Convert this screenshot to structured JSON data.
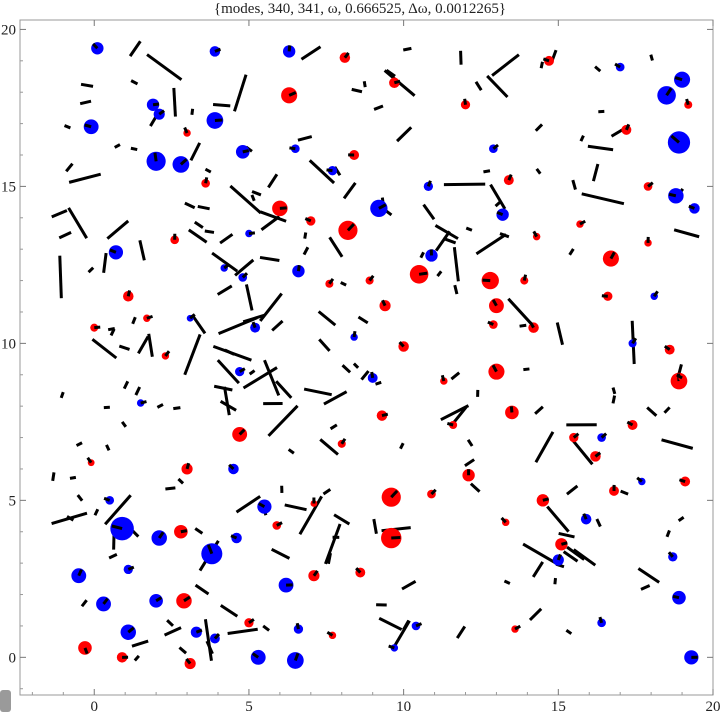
{
  "chart_data": {
    "type": "scatter",
    "title": "{modes, 340, 341, ω, 0.666525, Δω, 0.0012265}",
    "xlim": [
      -2.4,
      20
    ],
    "ylim": [
      -1.2,
      20.3
    ],
    "xticks": [
      0,
      5,
      10,
      15,
      20
    ],
    "yticks": [
      0,
      5,
      10,
      15,
      20
    ],
    "grid": false,
    "legend": "none",
    "colors": {
      "positive": "#ff0000",
      "negative": "#0000ff",
      "segment": "#000000",
      "frame": "#999999"
    },
    "circles": [
      {
        "x": 0.9,
        "y": 4.1,
        "r": 0.38,
        "sign": "negative"
      },
      {
        "x": 3.8,
        "y": 3.3,
        "r": 0.34,
        "sign": "negative"
      },
      {
        "x": 18.9,
        "y": 16.4,
        "r": 0.36,
        "sign": "negative"
      },
      {
        "x": 2.0,
        "y": 15.8,
        "r": 0.31,
        "sign": "negative"
      },
      {
        "x": 9.6,
        "y": 5.1,
        "r": 0.31,
        "sign": "positive"
      },
      {
        "x": 9.6,
        "y": 3.8,
        "r": 0.33,
        "sign": "positive"
      },
      {
        "x": 8.2,
        "y": 13.6,
        "r": 0.31,
        "sign": "positive"
      },
      {
        "x": 13.0,
        "y": 9.1,
        "r": 0.26,
        "sign": "positive"
      },
      {
        "x": 12.8,
        "y": 12.0,
        "r": 0.28,
        "sign": "positive"
      },
      {
        "x": 10.5,
        "y": 12.2,
        "r": 0.3,
        "sign": "positive"
      },
      {
        "x": 18.5,
        "y": 17.9,
        "r": 0.3,
        "sign": "negative"
      },
      {
        "x": 2.8,
        "y": 15.7,
        "r": 0.27,
        "sign": "negative"
      },
      {
        "x": 3.9,
        "y": 17.1,
        "r": 0.27,
        "sign": "negative"
      },
      {
        "x": 9.2,
        "y": 14.3,
        "r": 0.28,
        "sign": "negative"
      },
      {
        "x": 6.3,
        "y": 17.9,
        "r": 0.26,
        "sign": "positive"
      },
      {
        "x": 6.0,
        "y": 14.3,
        "r": 0.25,
        "sign": "positive"
      },
      {
        "x": 18.8,
        "y": 14.7,
        "r": 0.25,
        "sign": "negative"
      },
      {
        "x": 19.0,
        "y": 18.4,
        "r": 0.26,
        "sign": "negative"
      },
      {
        "x": 13.0,
        "y": 11.2,
        "r": 0.24,
        "sign": "positive"
      },
      {
        "x": 16.7,
        "y": 12.7,
        "r": 0.26,
        "sign": "positive"
      },
      {
        "x": 18.9,
        "y": 8.8,
        "r": 0.27,
        "sign": "positive"
      },
      {
        "x": 12.1,
        "y": 5.8,
        "r": 0.2,
        "sign": "positive"
      },
      {
        "x": -0.5,
        "y": 2.6,
        "r": 0.24,
        "sign": "negative"
      },
      {
        "x": -0.3,
        "y": 0.3,
        "r": 0.22,
        "sign": "positive"
      },
      {
        "x": 1.1,
        "y": 0.8,
        "r": 0.25,
        "sign": "negative"
      },
      {
        "x": 6.5,
        "y": -0.1,
        "r": 0.27,
        "sign": "negative"
      },
      {
        "x": 5.3,
        "y": 0.0,
        "r": 0.24,
        "sign": "negative"
      },
      {
        "x": 2.9,
        "y": 1.8,
        "r": 0.25,
        "sign": "positive"
      },
      {
        "x": 2.0,
        "y": 1.8,
        "r": 0.22,
        "sign": "negative"
      },
      {
        "x": 2.1,
        "y": 3.8,
        "r": 0.25,
        "sign": "negative"
      },
      {
        "x": 2.8,
        "y": 4.0,
        "r": 0.22,
        "sign": "positive"
      },
      {
        "x": 4.7,
        "y": 7.1,
        "r": 0.24,
        "sign": "positive"
      },
      {
        "x": 5.5,
        "y": 4.8,
        "r": 0.23,
        "sign": "negative"
      },
      {
        "x": 6.2,
        "y": 2.3,
        "r": 0.24,
        "sign": "negative"
      },
      {
        "x": 0.3,
        "y": 1.7,
        "r": 0.24,
        "sign": "negative"
      },
      {
        "x": 19.3,
        "y": 0.0,
        "r": 0.23,
        "sign": "negative"
      },
      {
        "x": 18.9,
        "y": 1.9,
        "r": 0.22,
        "sign": "negative"
      },
      {
        "x": 13.5,
        "y": 7.8,
        "r": 0.22,
        "sign": "positive"
      },
      {
        "x": 14.5,
        "y": 5.0,
        "r": 0.2,
        "sign": "positive"
      },
      {
        "x": 15.1,
        "y": 3.6,
        "r": 0.2,
        "sign": "positive"
      },
      {
        "x": 1.9,
        "y": 17.6,
        "r": 0.2,
        "sign": "negative"
      },
      {
        "x": -0.1,
        "y": 16.9,
        "r": 0.24,
        "sign": "negative"
      },
      {
        "x": 0.7,
        "y": 12.9,
        "r": 0.23,
        "sign": "negative"
      },
      {
        "x": 4.8,
        "y": 16.1,
        "r": 0.22,
        "sign": "negative"
      },
      {
        "x": 6.6,
        "y": 12.3,
        "r": 0.2,
        "sign": "negative"
      },
      {
        "x": 10.9,
        "y": 12.8,
        "r": 0.2,
        "sign": "negative"
      },
      {
        "x": 13.2,
        "y": 14.1,
        "r": 0.2,
        "sign": "negative"
      },
      {
        "x": 15.0,
        "y": 3.1,
        "r": 0.18,
        "sign": "negative"
      },
      {
        "x": 15.9,
        "y": 4.4,
        "r": 0.17,
        "sign": "negative"
      },
      {
        "x": 14.2,
        "y": 10.5,
        "r": 0.17,
        "sign": "positive"
      },
      {
        "x": 15.5,
        "y": 7.0,
        "r": 0.15,
        "sign": "positive"
      },
      {
        "x": 17.2,
        "y": 16.8,
        "r": 0.16,
        "sign": "positive"
      },
      {
        "x": 16.8,
        "y": 5.3,
        "r": 0.16,
        "sign": "positive"
      },
      {
        "x": 19.1,
        "y": 5.6,
        "r": 0.16,
        "sign": "positive"
      },
      {
        "x": 9.3,
        "y": 7.7,
        "r": 0.17,
        "sign": "positive"
      },
      {
        "x": 7.1,
        "y": 2.6,
        "r": 0.18,
        "sign": "positive"
      },
      {
        "x": 3.0,
        "y": 6.0,
        "r": 0.18,
        "sign": "positive"
      },
      {
        "x": 1.1,
        "y": 11.5,
        "r": 0.17,
        "sign": "positive"
      },
      {
        "x": 9.4,
        "y": 11.2,
        "r": 0.18,
        "sign": "positive"
      },
      {
        "x": 10.0,
        "y": 9.9,
        "r": 0.17,
        "sign": "positive"
      },
      {
        "x": 5.9,
        "y": 4.2,
        "r": 0.14,
        "sign": "positive"
      },
      {
        "x": 7.0,
        "y": 13.9,
        "r": 0.15,
        "sign": "positive"
      },
      {
        "x": 8.4,
        "y": 16.0,
        "r": 0.16,
        "sign": "positive"
      },
      {
        "x": 9.7,
        "y": 18.3,
        "r": 0.17,
        "sign": "positive"
      },
      {
        "x": 12.0,
        "y": 17.6,
        "r": 0.15,
        "sign": "positive"
      },
      {
        "x": 13.4,
        "y": 15.2,
        "r": 0.16,
        "sign": "positive"
      },
      {
        "x": 16.6,
        "y": 11.5,
        "r": 0.15,
        "sign": "positive"
      },
      {
        "x": 18.6,
        "y": 9.8,
        "r": 0.16,
        "sign": "positive"
      },
      {
        "x": 17.4,
        "y": 7.4,
        "r": 0.16,
        "sign": "positive"
      },
      {
        "x": 16.2,
        "y": 6.4,
        "r": 0.17,
        "sign": "positive"
      },
      {
        "x": 8.6,
        "y": 2.7,
        "r": 0.16,
        "sign": "positive"
      },
      {
        "x": 5.0,
        "y": 1.1,
        "r": 0.15,
        "sign": "positive"
      },
      {
        "x": 0.9,
        "y": 0.0,
        "r": 0.17,
        "sign": "positive"
      },
      {
        "x": 3.1,
        "y": -0.2,
        "r": 0.18,
        "sign": "positive"
      },
      {
        "x": 3.3,
        "y": 0.8,
        "r": 0.18,
        "sign": "negative"
      },
      {
        "x": 3.9,
        "y": 0.6,
        "r": 0.16,
        "sign": "negative"
      },
      {
        "x": 4.5,
        "y": 6.0,
        "r": 0.17,
        "sign": "negative"
      },
      {
        "x": 4.6,
        "y": 3.8,
        "r": 0.17,
        "sign": "negative"
      },
      {
        "x": 1.1,
        "y": 2.8,
        "r": 0.15,
        "sign": "negative"
      },
      {
        "x": 0.5,
        "y": 5.0,
        "r": 0.14,
        "sign": "negative"
      },
      {
        "x": 6.5,
        "y": 16.2,
        "r": 0.14,
        "sign": "negative"
      },
      {
        "x": 5.2,
        "y": 10.5,
        "r": 0.16,
        "sign": "negative"
      },
      {
        "x": 4.7,
        "y": 9.1,
        "r": 0.15,
        "sign": "negative"
      },
      {
        "x": 9.0,
        "y": 8.9,
        "r": 0.16,
        "sign": "negative"
      },
      {
        "x": 6.6,
        "y": 0.9,
        "r": 0.15,
        "sign": "negative"
      },
      {
        "x": 10.4,
        "y": 1.0,
        "r": 0.14,
        "sign": "negative"
      },
      {
        "x": 7.7,
        "y": 15.5,
        "r": 0.15,
        "sign": "negative"
      },
      {
        "x": 10.8,
        "y": 15.0,
        "r": 0.15,
        "sign": "negative"
      },
      {
        "x": 12.9,
        "y": 16.2,
        "r": 0.14,
        "sign": "negative"
      },
      {
        "x": 16.4,
        "y": 7.0,
        "r": 0.14,
        "sign": "negative"
      },
      {
        "x": 18.7,
        "y": 3.2,
        "r": 0.15,
        "sign": "negative"
      },
      {
        "x": 16.4,
        "y": 1.1,
        "r": 0.14,
        "sign": "negative"
      },
      {
        "x": 19.0,
        "y": 8.9,
        "r": 0.12,
        "sign": "positive"
      },
      {
        "x": 0.1,
        "y": 19.4,
        "r": 0.2,
        "sign": "negative"
      },
      {
        "x": 3.9,
        "y": 19.3,
        "r": 0.17,
        "sign": "negative"
      },
      {
        "x": 6.3,
        "y": 19.3,
        "r": 0.2,
        "sign": "negative"
      },
      {
        "x": 8.1,
        "y": 19.1,
        "r": 0.17,
        "sign": "positive"
      },
      {
        "x": 14.7,
        "y": 19.0,
        "r": 0.16,
        "sign": "positive"
      },
      {
        "x": 17.0,
        "y": 18.8,
        "r": 0.14,
        "sign": "negative"
      },
      {
        "x": 19.4,
        "y": 14.3,
        "r": 0.17,
        "sign": "negative"
      },
      {
        "x": 17.9,
        "y": 15.0,
        "r": 0.14,
        "sign": "positive"
      },
      {
        "x": 2.1,
        "y": 17.3,
        "r": 0.18,
        "sign": "negative"
      },
      {
        "x": 2.6,
        "y": 13.3,
        "r": 0.14,
        "sign": "positive"
      },
      {
        "x": 3.6,
        "y": 15.1,
        "r": 0.14,
        "sign": "positive"
      },
      {
        "x": 3.0,
        "y": 16.7,
        "r": 0.12,
        "sign": "positive"
      },
      {
        "x": 4.8,
        "y": 12.1,
        "r": 0.14,
        "sign": "negative"
      },
      {
        "x": 5.0,
        "y": 13.5,
        "r": 0.12,
        "sign": "negative"
      },
      {
        "x": 7.6,
        "y": 11.9,
        "r": 0.13,
        "sign": "positive"
      },
      {
        "x": 8.9,
        "y": 12.0,
        "r": 0.13,
        "sign": "positive"
      },
      {
        "x": 8.0,
        "y": 6.8,
        "r": 0.13,
        "sign": "positive"
      },
      {
        "x": 11.3,
        "y": 8.8,
        "r": 0.12,
        "sign": "positive"
      },
      {
        "x": 12.9,
        "y": 10.6,
        "r": 0.14,
        "sign": "positive"
      },
      {
        "x": 13.9,
        "y": 12.0,
        "r": 0.13,
        "sign": "positive"
      },
      {
        "x": 15.7,
        "y": 13.8,
        "r": 0.12,
        "sign": "positive"
      },
      {
        "x": 14.3,
        "y": 13.4,
        "r": 0.12,
        "sign": "positive"
      },
      {
        "x": 11.6,
        "y": 7.4,
        "r": 0.13,
        "sign": "positive"
      },
      {
        "x": 10.9,
        "y": 5.2,
        "r": 0.14,
        "sign": "positive"
      },
      {
        "x": 13.3,
        "y": 4.3,
        "r": 0.12,
        "sign": "positive"
      },
      {
        "x": 7.7,
        "y": 0.7,
        "r": 0.12,
        "sign": "positive"
      },
      {
        "x": 9.7,
        "y": 0.3,
        "r": 0.12,
        "sign": "negative"
      },
      {
        "x": 13.6,
        "y": 0.9,
        "r": 0.12,
        "sign": "positive"
      },
      {
        "x": 17.7,
        "y": 5.6,
        "r": 0.12,
        "sign": "negative"
      },
      {
        "x": 17.4,
        "y": 10.0,
        "r": 0.13,
        "sign": "negative"
      },
      {
        "x": 18.1,
        "y": 11.5,
        "r": 0.12,
        "sign": "negative"
      },
      {
        "x": 17.9,
        "y": 13.2,
        "r": 0.12,
        "sign": "positive"
      },
      {
        "x": 19.2,
        "y": 17.6,
        "r": 0.13,
        "sign": "positive"
      },
      {
        "x": 8.4,
        "y": 10.2,
        "r": 0.12,
        "sign": "negative"
      },
      {
        "x": 7.1,
        "y": 4.9,
        "r": 0.11,
        "sign": "positive"
      },
      {
        "x": 4.2,
        "y": 12.4,
        "r": 0.12,
        "sign": "negative"
      },
      {
        "x": 2.3,
        "y": 9.6,
        "r": 0.12,
        "sign": "positive"
      },
      {
        "x": 1.5,
        "y": 8.1,
        "r": 0.12,
        "sign": "negative"
      },
      {
        "x": 1.7,
        "y": 10.8,
        "r": 0.12,
        "sign": "positive"
      },
      {
        "x": 0.0,
        "y": 10.5,
        "r": 0.13,
        "sign": "positive"
      },
      {
        "x": -0.1,
        "y": 6.2,
        "r": 0.11,
        "sign": "positive"
      },
      {
        "x": 3.1,
        "y": 10.8,
        "r": 0.11,
        "sign": "negative"
      }
    ]
  }
}
